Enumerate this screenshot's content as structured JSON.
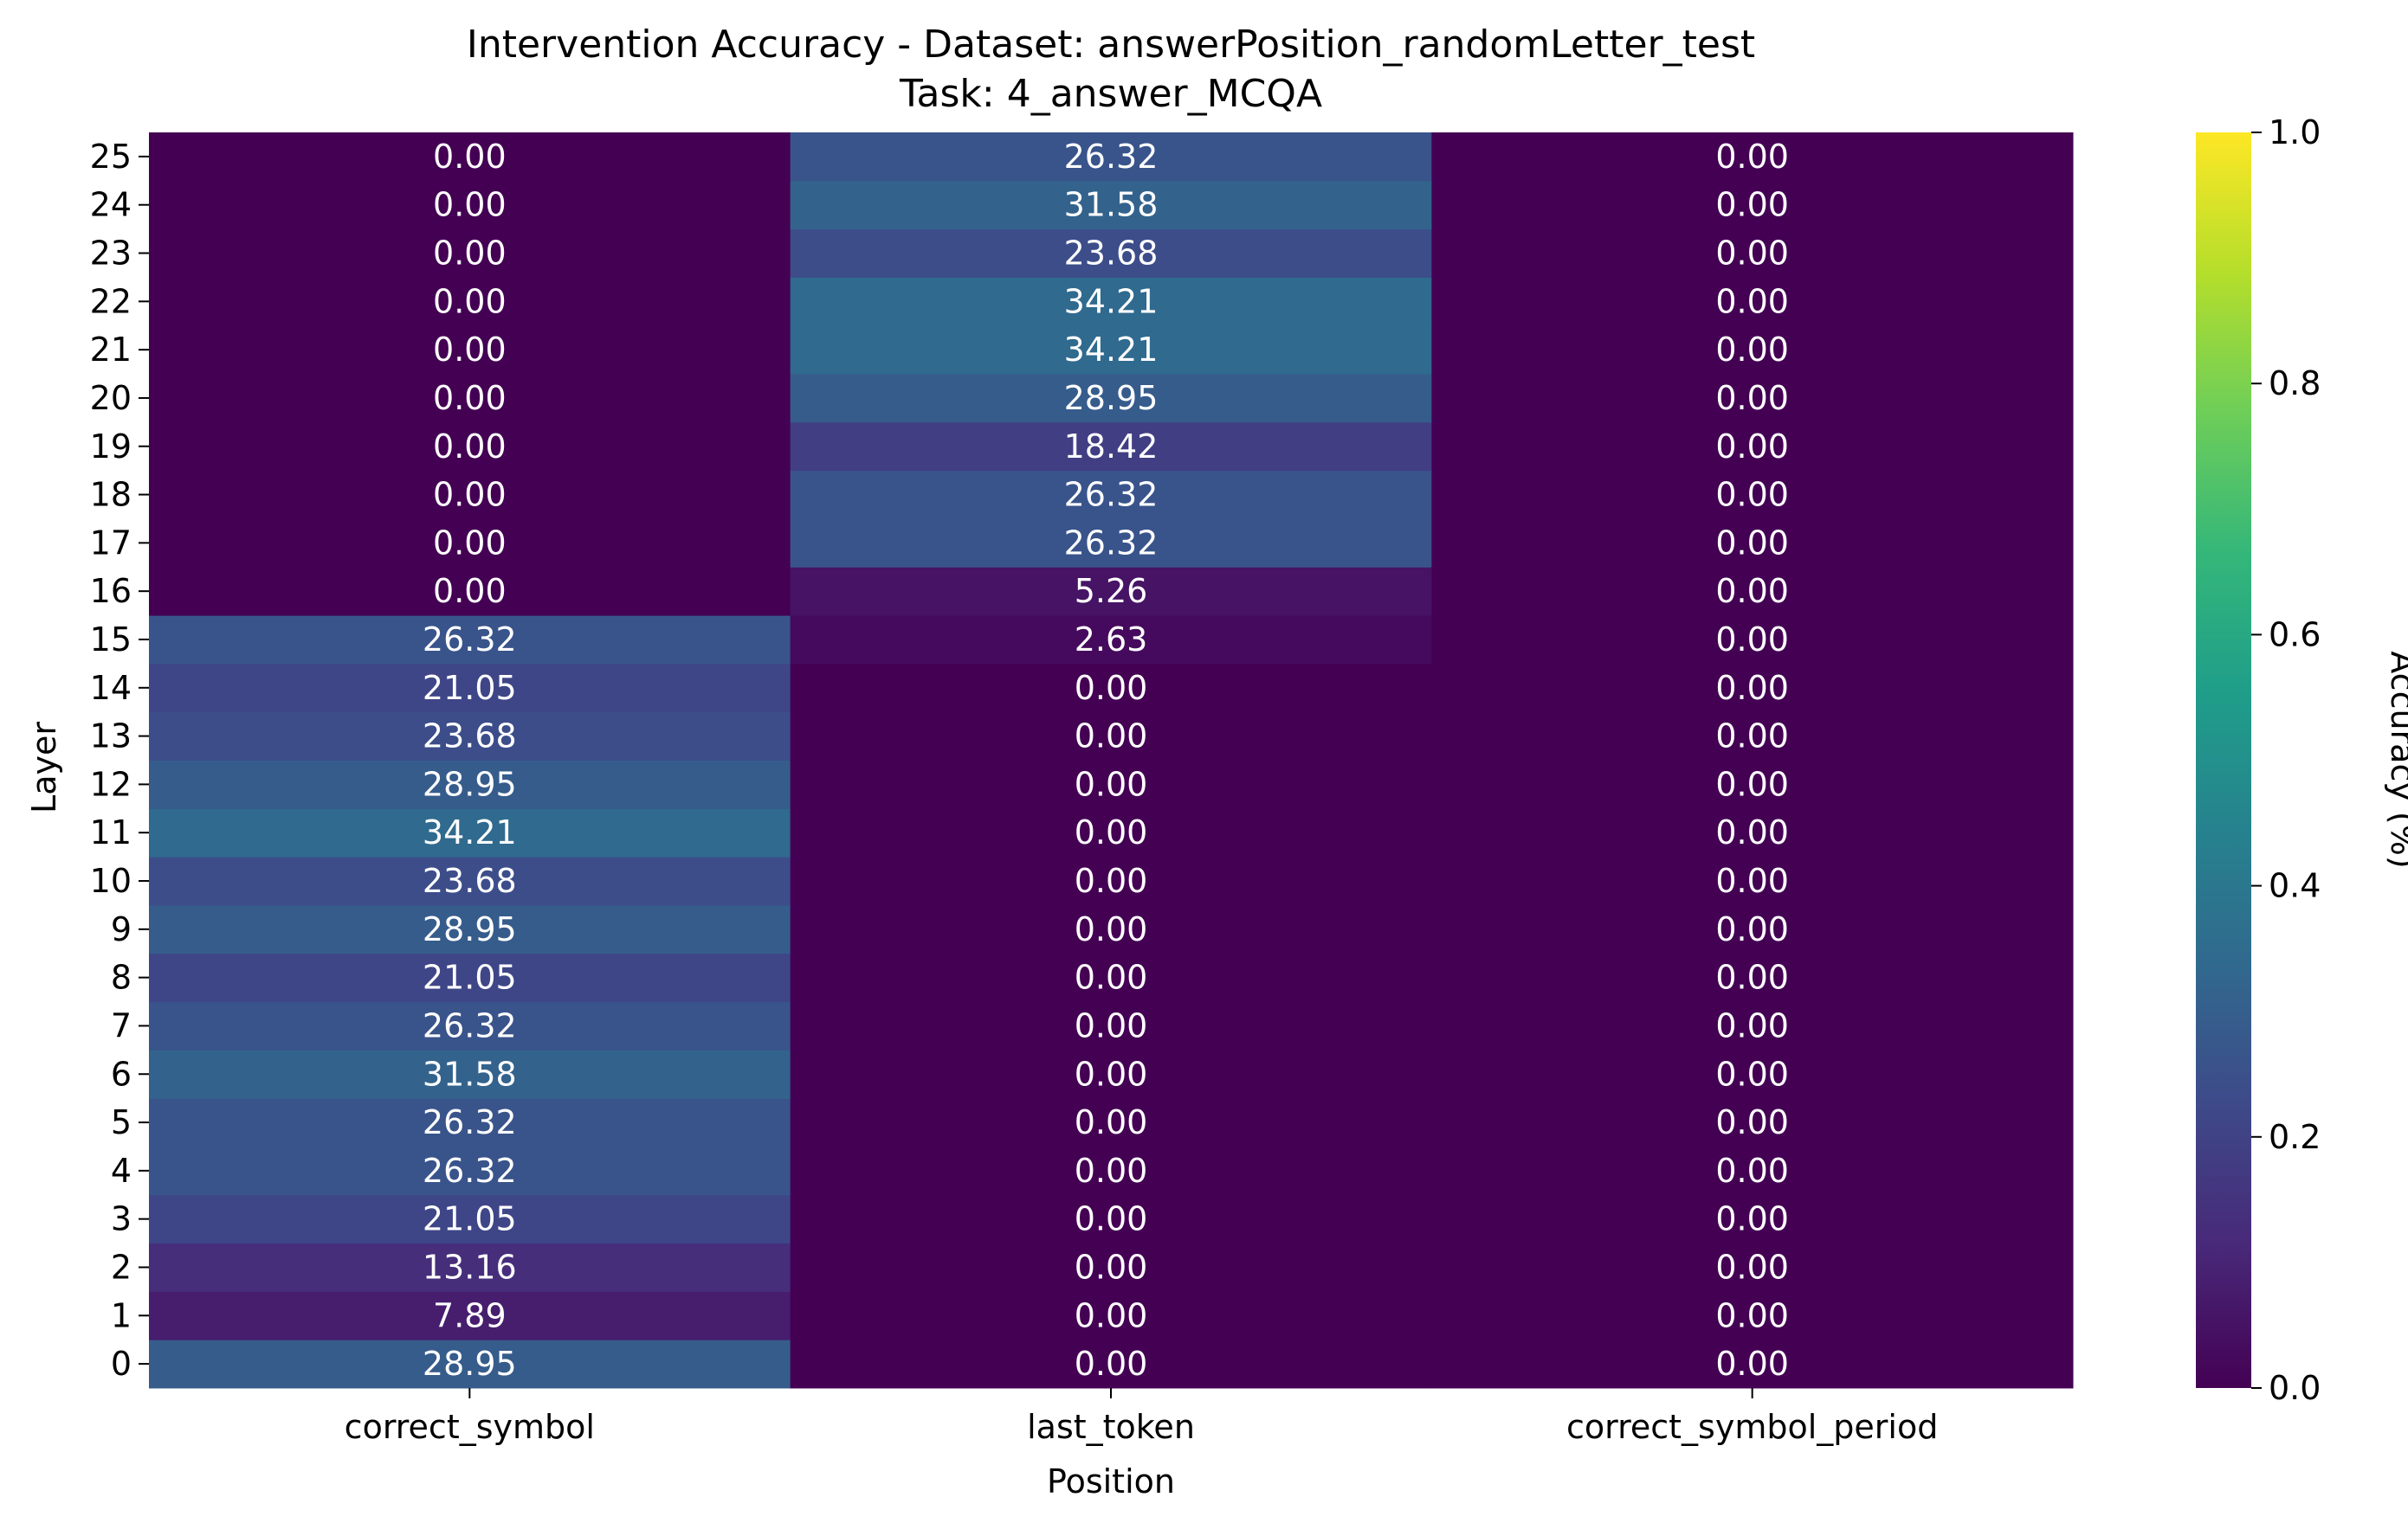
{
  "chart_data": {
    "type": "heatmap",
    "title": "Intervention Accuracy - Dataset: answerPosition_randomLetter_test",
    "subtitle": "Task: 4_answer_MCQA",
    "xlabel": "Position",
    "ylabel": "Layer",
    "x_categories": [
      "correct_symbol",
      "last_token",
      "correct_symbol_period"
    ],
    "y_categories": [
      0,
      1,
      2,
      3,
      4,
      5,
      6,
      7,
      8,
      9,
      10,
      11,
      12,
      13,
      14,
      15,
      16,
      17,
      18,
      19,
      20,
      21,
      22,
      23,
      24,
      25
    ],
    "values": [
      [
        28.95,
        0.0,
        0.0
      ],
      [
        7.89,
        0.0,
        0.0
      ],
      [
        13.16,
        0.0,
        0.0
      ],
      [
        21.05,
        0.0,
        0.0
      ],
      [
        26.32,
        0.0,
        0.0
      ],
      [
        26.32,
        0.0,
        0.0
      ],
      [
        31.58,
        0.0,
        0.0
      ],
      [
        26.32,
        0.0,
        0.0
      ],
      [
        21.05,
        0.0,
        0.0
      ],
      [
        28.95,
        0.0,
        0.0
      ],
      [
        23.68,
        0.0,
        0.0
      ],
      [
        34.21,
        0.0,
        0.0
      ],
      [
        28.95,
        0.0,
        0.0
      ],
      [
        23.68,
        0.0,
        0.0
      ],
      [
        21.05,
        0.0,
        0.0
      ],
      [
        26.32,
        2.63,
        0.0
      ],
      [
        0.0,
        5.26,
        0.0
      ],
      [
        0.0,
        26.32,
        0.0
      ],
      [
        0.0,
        26.32,
        0.0
      ],
      [
        0.0,
        18.42,
        0.0
      ],
      [
        0.0,
        28.95,
        0.0
      ],
      [
        0.0,
        34.21,
        0.0
      ],
      [
        0.0,
        34.21,
        0.0
      ],
      [
        0.0,
        23.68,
        0.0
      ],
      [
        0.0,
        31.58,
        0.0
      ],
      [
        0.0,
        26.32,
        0.0
      ]
    ],
    "value_format": "2 decimals",
    "colormap": "viridis",
    "colorbar": {
      "label": "Accuracy (%)",
      "range": [
        0.0,
        1.0
      ],
      "ticks": [
        "0.0",
        "0.2",
        "0.4",
        "0.6",
        "0.8",
        "1.0"
      ]
    },
    "grid": false
  },
  "colors": {
    "viridis_stops": [
      "#440154",
      "#482878",
      "#3e4989",
      "#31688e",
      "#26828e",
      "#1f9e89",
      "#35b779",
      "#6ece58",
      "#b5de2b",
      "#fde725"
    ],
    "text": "#ffffff",
    "axis": "#000000"
  }
}
